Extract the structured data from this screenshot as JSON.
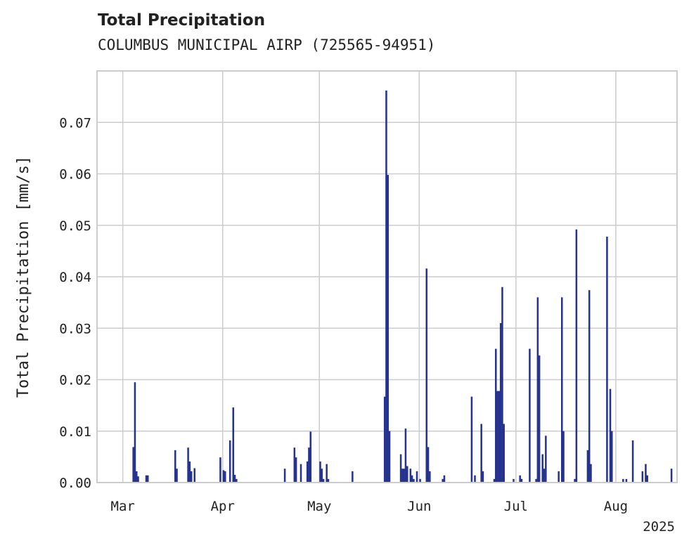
{
  "chart_data": {
    "type": "bar",
    "title": "Total Precipitation",
    "subtitle": "COLUMBUS MUNICIPAL AIRP (725565-94951)",
    "ylabel": "Total Precipitation [mm/s]",
    "xlabel": "",
    "year_label": "2025",
    "x_range": [
      "2025-02-21",
      "2025-08-20"
    ],
    "ylim": [
      0,
      0.08
    ],
    "yticks": [
      0.0,
      0.01,
      0.02,
      0.03,
      0.04,
      0.05,
      0.06,
      0.07
    ],
    "ytick_labels": [
      "0.00",
      "0.01",
      "0.02",
      "0.03",
      "0.04",
      "0.05",
      "0.06",
      "0.07"
    ],
    "xticks": [
      {
        "date": "2025-03-01",
        "label": "Mar"
      },
      {
        "date": "2025-04-01",
        "label": "Apr"
      },
      {
        "date": "2025-05-01",
        "label": "May"
      },
      {
        "date": "2025-06-01",
        "label": "Jun"
      },
      {
        "date": "2025-07-01",
        "label": "Jul"
      },
      {
        "date": "2025-08-01",
        "label": "Aug"
      }
    ],
    "grid": true,
    "series": [
      {
        "color": "#25338f",
        "points": [
          [
            "2025-03-04",
            0.0069
          ],
          [
            "2025-03-04",
            0.0195
          ],
          [
            "2025-03-05",
            0.0022
          ],
          [
            "2025-03-05",
            0.0012
          ],
          [
            "2025-03-08",
            0.0014
          ],
          [
            "2025-03-08",
            0.0014
          ],
          [
            "2025-03-17",
            0.0063
          ],
          [
            "2025-03-17",
            0.0027
          ],
          [
            "2025-03-21",
            0.0068
          ],
          [
            "2025-03-21",
            0.0041
          ],
          [
            "2025-03-22",
            0.0022
          ],
          [
            "2025-03-23",
            0.0028
          ],
          [
            "2025-03-31",
            0.0049
          ],
          [
            "2025-04-01",
            0.0024
          ],
          [
            "2025-04-01",
            0.0022
          ],
          [
            "2025-04-03",
            0.0082
          ],
          [
            "2025-04-04",
            0.0146
          ],
          [
            "2025-04-04",
            0.0015
          ],
          [
            "2025-04-04",
            0.0007
          ],
          [
            "2025-04-20",
            0.0027
          ],
          [
            "2025-04-23",
            0.0068
          ],
          [
            "2025-04-23",
            0.0049
          ],
          [
            "2025-04-25",
            0.0036
          ],
          [
            "2025-04-27",
            0.0041
          ],
          [
            "2025-04-27",
            0.0068
          ],
          [
            "2025-04-28",
            0.0099
          ],
          [
            "2025-05-01",
            0.0041
          ],
          [
            "2025-05-01",
            0.0027
          ],
          [
            "2025-05-02",
            0.0007
          ],
          [
            "2025-05-03",
            0.0036
          ],
          [
            "2025-05-03",
            0.0007
          ],
          [
            "2025-05-11",
            0.0022
          ],
          [
            "2025-05-21",
            0.0167
          ],
          [
            "2025-05-21",
            0.0762
          ],
          [
            "2025-05-22",
            0.0598
          ],
          [
            "2025-05-22",
            0.01
          ],
          [
            "2025-05-26",
            0.0055
          ],
          [
            "2025-05-26",
            0.0027
          ],
          [
            "2025-05-27",
            0.0027
          ],
          [
            "2025-05-27",
            0.0105
          ],
          [
            "2025-05-28",
            0.0032
          ],
          [
            "2025-05-29",
            0.0027
          ],
          [
            "2025-05-29",
            0.0014
          ],
          [
            "2025-05-30",
            0.0007
          ],
          [
            "2025-05-31",
            0.0022
          ],
          [
            "2025-06-01",
            0.0007
          ],
          [
            "2025-06-03",
            0.0416
          ],
          [
            "2025-06-03",
            0.0069
          ],
          [
            "2025-06-04",
            0.0022
          ],
          [
            "2025-06-08",
            0.0007
          ],
          [
            "2025-06-08",
            0.0014
          ],
          [
            "2025-06-17",
            0.0167
          ],
          [
            "2025-06-18",
            0.0014
          ],
          [
            "2025-06-20",
            0.0114
          ],
          [
            "2025-06-20",
            0.0022
          ],
          [
            "2025-06-24",
            0.0007
          ],
          [
            "2025-06-24",
            0.026
          ],
          [
            "2025-06-25",
            0.0178
          ],
          [
            "2025-06-25",
            0.0178
          ],
          [
            "2025-06-26",
            0.031
          ],
          [
            "2025-06-26",
            0.038
          ],
          [
            "2025-06-26",
            0.0114
          ],
          [
            "2025-06-27",
            0.0007
          ],
          [
            "2025-06-30",
            0.0007
          ],
          [
            "2025-07-02",
            0.0014
          ],
          [
            "2025-07-02",
            0.0007
          ],
          [
            "2025-07-05",
            0.026
          ],
          [
            "2025-07-07",
            0.0007
          ],
          [
            "2025-07-07",
            0.036
          ],
          [
            "2025-07-07",
            0.0247
          ],
          [
            "2025-07-09",
            0.0055
          ],
          [
            "2025-07-09",
            0.0027
          ],
          [
            "2025-07-10",
            0.0091
          ],
          [
            "2025-07-14",
            0.0022
          ],
          [
            "2025-07-15",
            0.036
          ],
          [
            "2025-07-15",
            0.01
          ],
          [
            "2025-07-19",
            0.0007
          ],
          [
            "2025-07-19",
            0.0492
          ],
          [
            "2025-07-23",
            0.0063
          ],
          [
            "2025-07-23",
            0.0374
          ],
          [
            "2025-07-23",
            0.0036
          ],
          [
            "2025-07-29",
            0.0478
          ],
          [
            "2025-07-30",
            0.0182
          ],
          [
            "2025-07-30",
            0.01
          ],
          [
            "2025-08-03",
            0.0007
          ],
          [
            "2025-08-04",
            0.0007
          ],
          [
            "2025-08-06",
            0.0082
          ],
          [
            "2025-08-09",
            0.0022
          ],
          [
            "2025-08-10",
            0.0036
          ],
          [
            "2025-08-10",
            0.0014
          ],
          [
            "2025-08-18",
            0.0027
          ]
        ]
      }
    ]
  }
}
